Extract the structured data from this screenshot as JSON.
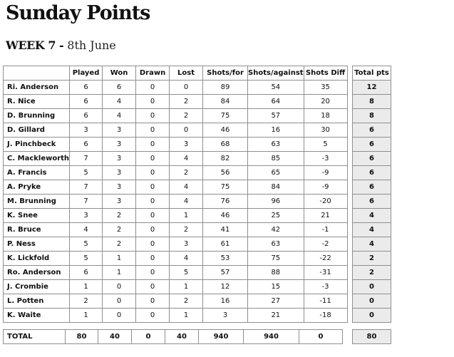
{
  "title": "Sunday Points",
  "week_label": "WEEK 7 -",
  "week_date": "8th June",
  "columns": [
    "Played",
    "Won",
    "Drawn",
    "Lost",
    "Shots/for",
    "Shots/against",
    "Shots Diff"
  ],
  "total_pts_header": "Total pts",
  "rows": [
    {
      "name": "Ri. Anderson",
      "played": "6",
      "won": "6",
      "drawn": "0",
      "lost": "0",
      "for": "89",
      "against": "54",
      "diff": "35",
      "pts": "12"
    },
    {
      "name": "R. Nice",
      "played": "6",
      "won": "4",
      "drawn": "0",
      "lost": "2",
      "for": "84",
      "against": "64",
      "diff": "20",
      "pts": "8"
    },
    {
      "name": "D. Brunning",
      "played": "6",
      "won": "4",
      "drawn": "0",
      "lost": "2",
      "for": "75",
      "against": "57",
      "diff": "18",
      "pts": "8"
    },
    {
      "name": "D. Gillard",
      "played": "3",
      "won": "3",
      "drawn": "0",
      "lost": "0",
      "for": "46",
      "against": "16",
      "diff": "30",
      "pts": "6"
    },
    {
      "name": "J. Pinchbeck",
      "played": "6",
      "won": "3",
      "drawn": "0",
      "lost": "3",
      "for": "68",
      "against": "63",
      "diff": "5",
      "pts": "6"
    },
    {
      "name": "C. Mackleworth",
      "played": "7",
      "won": "3",
      "drawn": "0",
      "lost": "4",
      "for": "82",
      "against": "85",
      "diff": "-3",
      "pts": "6"
    },
    {
      "name": "A. Francis",
      "played": "5",
      "won": "3",
      "drawn": "0",
      "lost": "2",
      "for": "56",
      "against": "65",
      "diff": "-9",
      "pts": "6"
    },
    {
      "name": "A. Pryke",
      "played": "7",
      "won": "3",
      "drawn": "0",
      "lost": "4",
      "for": "75",
      "against": "84",
      "diff": "-9",
      "pts": "6"
    },
    {
      "name": "M. Brunning",
      "played": "7",
      "won": "3",
      "drawn": "0",
      "lost": "4",
      "for": "76",
      "against": "96",
      "diff": "-20",
      "pts": "6"
    },
    {
      "name": "K. Snee",
      "played": "3",
      "won": "2",
      "drawn": "0",
      "lost": "1",
      "for": "46",
      "against": "25",
      "diff": "21",
      "pts": "4"
    },
    {
      "name": "R. Bruce",
      "played": "4",
      "won": "2",
      "drawn": "0",
      "lost": "2",
      "for": "41",
      "against": "42",
      "diff": "-1",
      "pts": "4"
    },
    {
      "name": "P. Ness",
      "played": "5",
      "won": "2",
      "drawn": "0",
      "lost": "3",
      "for": "61",
      "against": "63",
      "diff": "-2",
      "pts": "4"
    },
    {
      "name": "K. Lickfold",
      "played": "5",
      "won": "1",
      "drawn": "0",
      "lost": "4",
      "for": "53",
      "against": "75",
      "diff": "-22",
      "pts": "2"
    },
    {
      "name": "Ro. Anderson",
      "played": "6",
      "won": "1",
      "drawn": "0",
      "lost": "5",
      "for": "57",
      "against": "88",
      "diff": "-31",
      "pts": "2"
    },
    {
      "name": "J. Crombie",
      "played": "1",
      "won": "0",
      "drawn": "0",
      "lost": "1",
      "for": "12",
      "against": "15",
      "diff": "-3",
      "pts": "0"
    },
    {
      "name": "L. Potten",
      "played": "2",
      "won": "0",
      "drawn": "0",
      "lost": "2",
      "for": "16",
      "against": "27",
      "diff": "-11",
      "pts": "0"
    },
    {
      "name": "K. Waite",
      "played": "1",
      "won": "0",
      "drawn": "0",
      "lost": "1",
      "for": "3",
      "against": "21",
      "diff": "-18",
      "pts": "0"
    }
  ],
  "total": {
    "label": "TOTAL",
    "played": "80",
    "won": "40",
    "drawn": "0",
    "lost": "40",
    "for": "940",
    "against": "940",
    "diff": "0",
    "pts": "80"
  }
}
